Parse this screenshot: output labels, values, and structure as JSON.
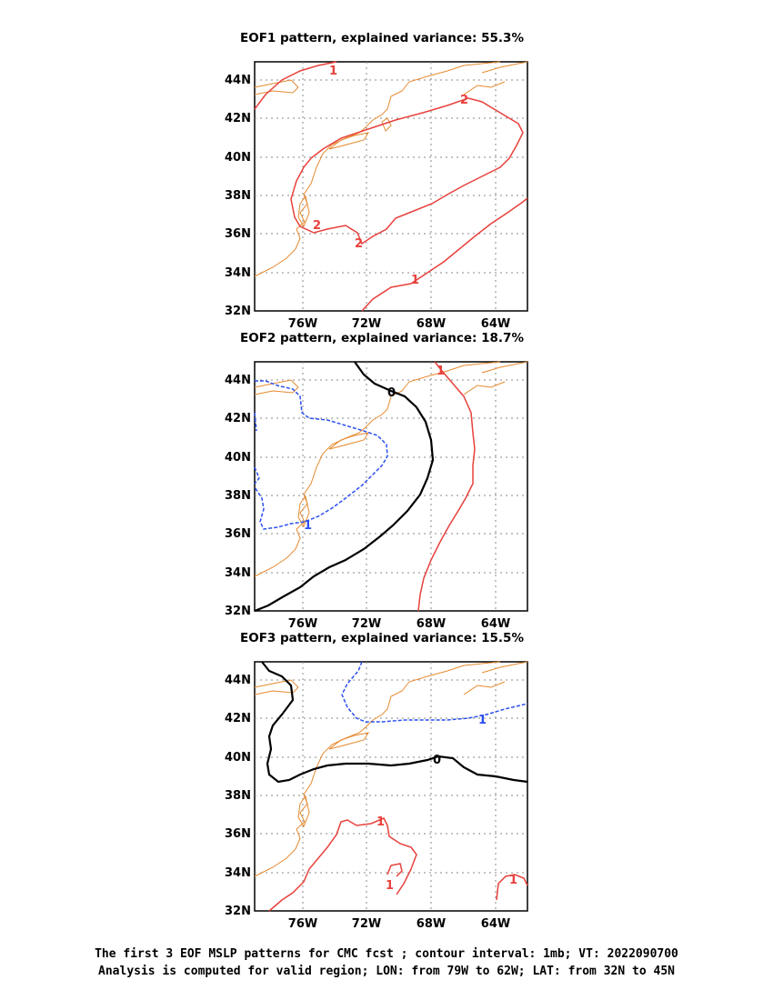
{
  "panels": [
    {
      "title": "EOF1 pattern, explained variance: 55.3%",
      "contour_labels": [
        "1",
        "2",
        "2",
        "2",
        "1"
      ]
    },
    {
      "title": "EOF2 pattern, explained variance: 18.7%",
      "contour_labels": [
        "0",
        "1",
        "1"
      ]
    },
    {
      "title": "EOF3 pattern, explained variance: 15.5%",
      "contour_labels": [
        "0",
        "1",
        "1",
        "1",
        "1"
      ]
    }
  ],
  "axes": {
    "lat_ticks": [
      "44N",
      "42N",
      "40N",
      "38N",
      "36N",
      "34N",
      "32N"
    ],
    "lon_ticks": [
      "76W",
      "72W",
      "68W",
      "64W"
    ]
  },
  "colors": {
    "positive": "#e8413c",
    "negative": "#2b4ff0",
    "zero": "#000000",
    "coast": "#e58a2f",
    "grid": "#888888"
  },
  "caption": {
    "line1": "The first 3 EOF MSLP patterns for CMC fcst ; contour interval: 1mb; VT: 2022090700",
    "line2": "Analysis is computed for valid region; LON: from 79W to 62W; LAT: from 32N to 45N"
  }
}
